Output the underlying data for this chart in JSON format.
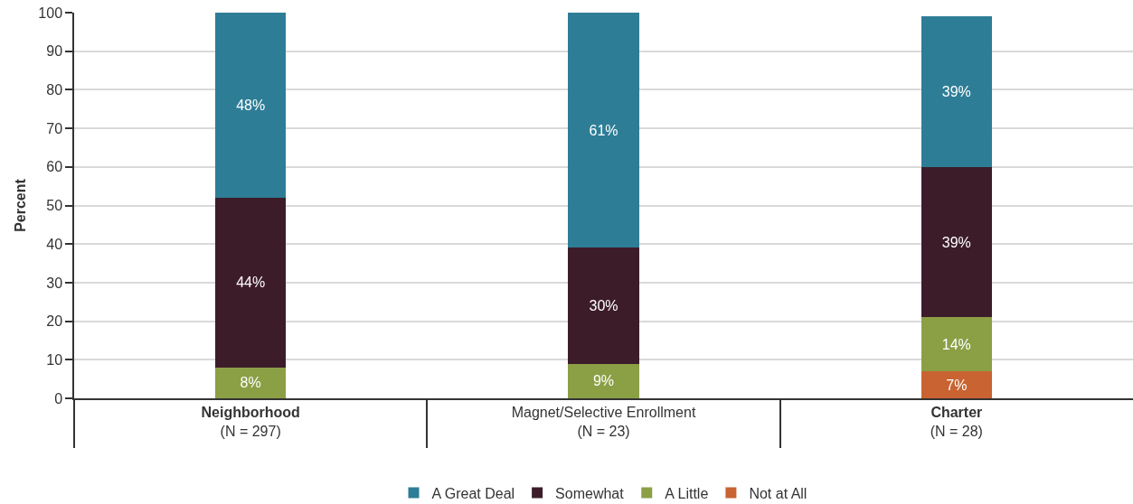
{
  "chart_data": {
    "type": "bar",
    "stacked": true,
    "ylabel": "Percent",
    "categories": [
      "Neighborhood\n(N = 297)",
      "Magnet/Selective Enrollment\n(N = 23)",
      "Charter\n(N = 28)"
    ],
    "series": [
      {
        "name": "Not at All",
        "color": "#c96331",
        "values": [
          null,
          null,
          7
        ],
        "value_labels": [
          null,
          null,
          "7%"
        ]
      },
      {
        "name": "A Little",
        "color": "#8b9f45",
        "values": [
          8,
          9,
          14
        ],
        "value_labels": [
          "8%",
          "9%",
          "14%"
        ]
      },
      {
        "name": "Somewhat",
        "color": "#3d1c2a",
        "values": [
          44,
          30,
          39
        ],
        "value_labels": [
          "44%",
          "30%",
          "39%"
        ]
      },
      {
        "name": "A Great Deal",
        "color": "#2e7d96",
        "values": [
          48,
          61,
          39
        ],
        "value_labels": [
          "48%",
          "61%",
          "39%"
        ]
      }
    ],
    "ylim": [
      0,
      100
    ],
    "yticks": [
      0,
      10,
      20,
      30,
      40,
      50,
      60,
      70,
      80,
      90,
      100
    ],
    "grid": "y",
    "legend": "bottom"
  }
}
